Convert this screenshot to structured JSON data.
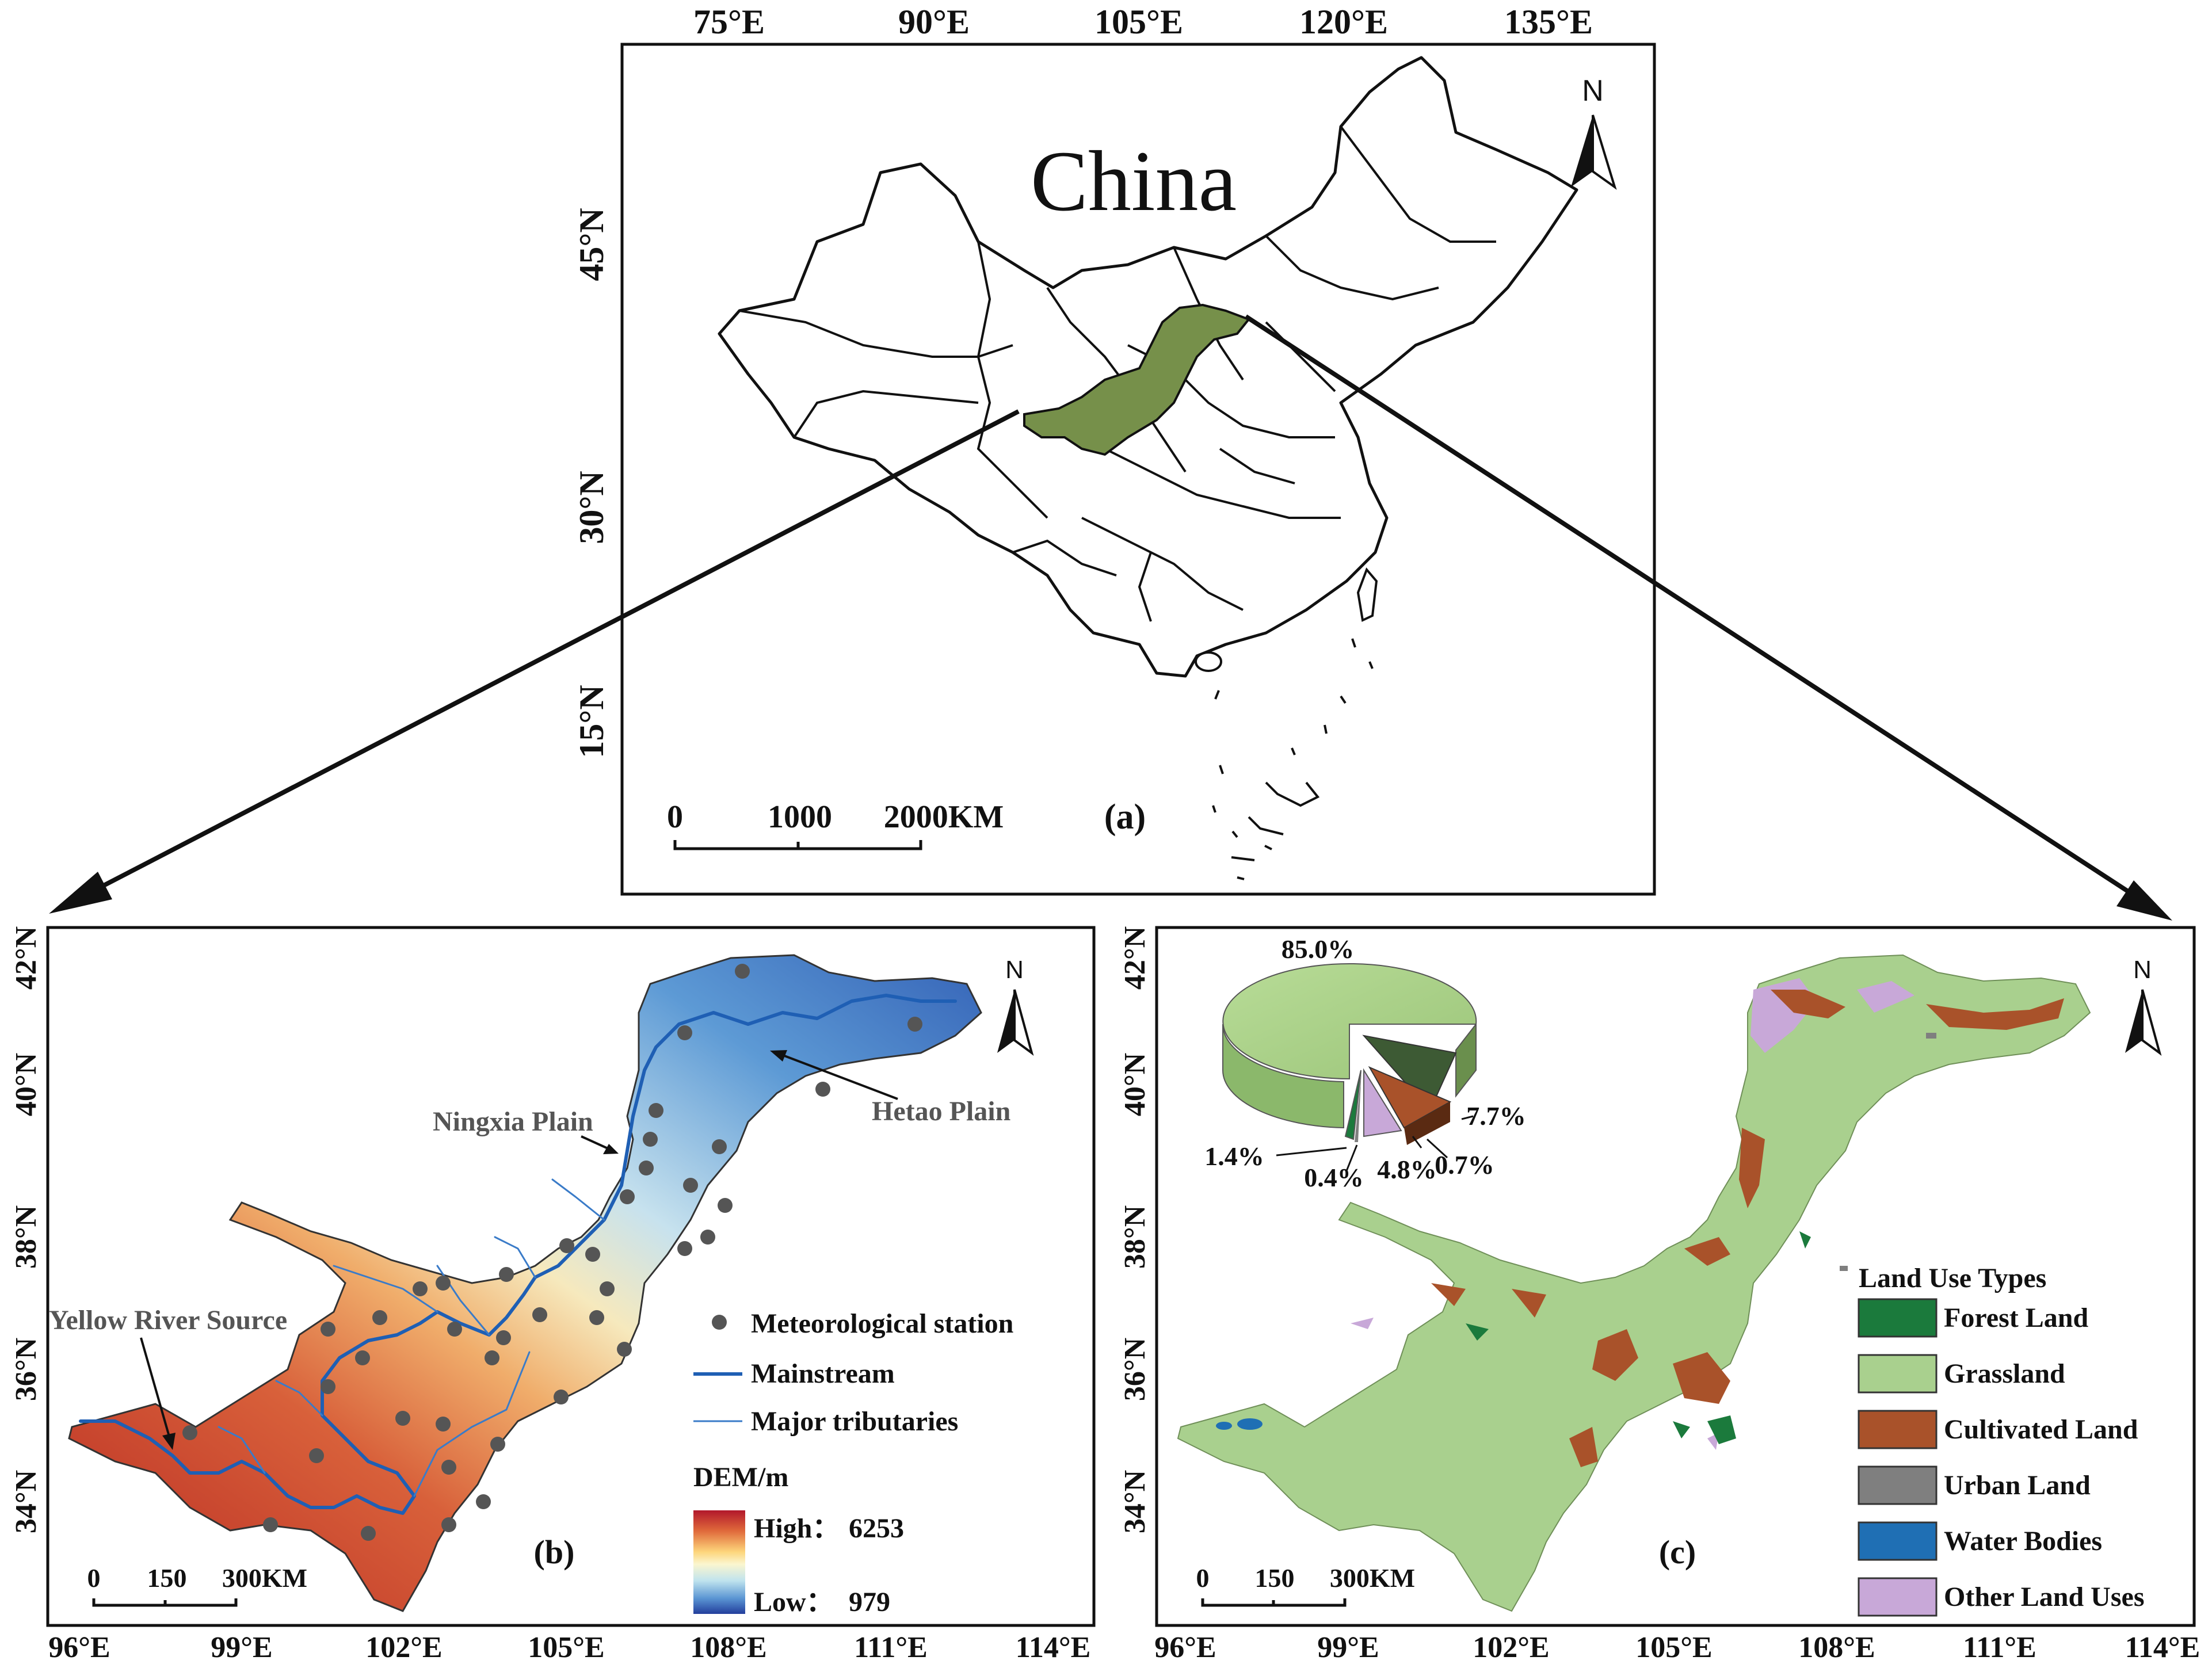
{
  "panel_a": {
    "label": "(a)",
    "country": "China",
    "north": "N",
    "lon_ticks": [
      "75°E",
      "90°E",
      "105°E",
      "120°E",
      "135°E"
    ],
    "lat_ticks": [
      "45°N",
      "30°N",
      "15°N"
    ],
    "scale": [
      "0",
      "1000",
      "2000KM"
    ],
    "highlight_color": "#76904a"
  },
  "panel_b": {
    "label": "(b)",
    "north": "N",
    "lon_ticks": [
      "96°E",
      "99°E",
      "102°E",
      "105°E",
      "108°E",
      "111°E",
      "114°E"
    ],
    "lat_ticks": [
      "42°N",
      "40°N",
      "38°N",
      "36°N",
      "34°N"
    ],
    "scale": [
      "0",
      "150",
      "300KM"
    ],
    "annotations": {
      "ningxia": "Ningxia Plain",
      "hetao": "Hetao Plain",
      "source": "Yellow River Source"
    },
    "legend": {
      "station": "Meteorological station",
      "mainstream": "Mainstream",
      "tributaries": "Major tributaries"
    },
    "dem": {
      "title": "DEM/m",
      "high_label": "High：",
      "high_value": "6253",
      "low_label": "Low：",
      "low_value": "979"
    }
  },
  "panel_c": {
    "label": "(c)",
    "north": "N",
    "lon_ticks": [
      "96°E",
      "99°E",
      "102°E",
      "105°E",
      "108°E",
      "111°E",
      "114°E"
    ],
    "lat_ticks": [
      "42°N",
      "40°N",
      "38°N",
      "36°N",
      "34°N"
    ],
    "scale": [
      "0",
      "150",
      "300KM"
    ],
    "legend_title": "Land Use Types",
    "land_use": [
      {
        "name": "Forest Land",
        "color": "#1b7a3c",
        "pct_label": "1.4%",
        "pct": 1.4
      },
      {
        "name": "Grassland",
        "color": "#a9d08e",
        "pct_label": "85.0%",
        "pct": 85.0
      },
      {
        "name": "Cultivated Land",
        "color": "#a9522a",
        "pct_label": "7.7%",
        "pct": 7.7
      },
      {
        "name": "Urban Land",
        "color": "#7f7f7f",
        "pct_label": "0.4%",
        "pct": 0.4
      },
      {
        "name": "Water Bodies",
        "color": "#1f6fb4",
        "pct_label": "0.7%",
        "pct": 0.7
      },
      {
        "name": "Other Land Uses",
        "color": "#c8a8d8",
        "pct_label": "4.8%",
        "pct": 4.8
      }
    ]
  }
}
